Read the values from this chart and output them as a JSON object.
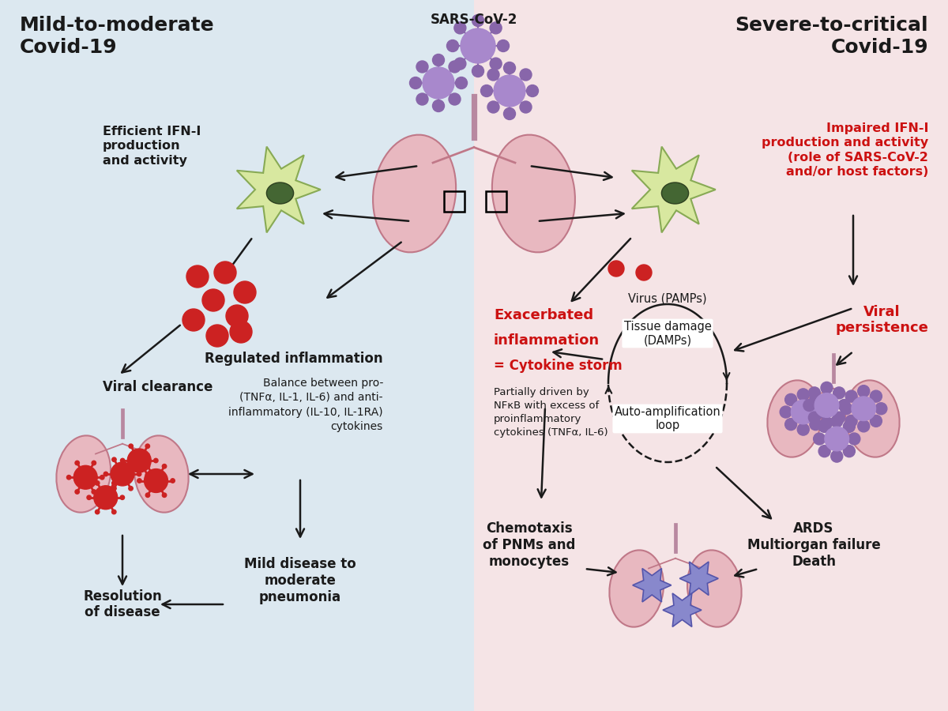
{
  "left_bg": "#dce8f0",
  "right_bg": "#f5e4e6",
  "left_title": "Mild-to-moderate\nCovid-19",
  "right_title": "Severe-to-critical\nCovid-19",
  "sars_label": "SARS-CoV-2",
  "left_ifn_label": "Efficient IFN-I\nproduction\nand activity",
  "right_ifn_label": "Impaired IFN-I\nproduction and activity\n(role of SARS-CoV-2\nand/or host factors)",
  "viral_clearance": "Viral clearance",
  "regulated_inflammation": "Regulated inflammation",
  "regulated_inflammation_sub": "Balance between pro-\n(TNFα, IL-1, IL-6) and anti-\ninflammatory (IL-10, IL-1RA)\ncytokines",
  "mild_disease": "Mild disease to\nmoderate\npneumonia",
  "resolution": "Resolution\nof disease",
  "exacerbated_line1": "Exacerbated",
  "exacerbated_line2": "inflammation",
  "exacerbated_line3": "= Cytokine storm",
  "exacerbated_sub": "Partially driven by\nNFκB with excess of\nproinflammatory\ncytokines (TNFα, IL-6)",
  "virus_pamps": "Virus (PAMPs)",
  "tissue_damage": "Tissue damage\n(DAMPs)",
  "auto_amp": "Auto-amplification\nloop",
  "viral_persistence": "Viral\npersistence",
  "chemotaxis": "Chemotaxis\nof PNMs and\nmonocytes",
  "ards": "ARDS\nMultiorgan failure\nDeath",
  "black": "#1a1a1a",
  "red": "#cc1111",
  "virus_core": "#a888cc",
  "virus_spike": "#8866aa",
  "dendrite_body": "#d8e8a0",
  "dendrite_edge": "#88aa55",
  "dendrite_nucleus": "#446633",
  "lung_fill": "#e8b8c0",
  "lung_edge": "#c07888",
  "trachea_color": "#b888a0",
  "red_virus_color": "#cc2222",
  "starburst_fill": "#8888cc",
  "starburst_edge": "#5555aa"
}
